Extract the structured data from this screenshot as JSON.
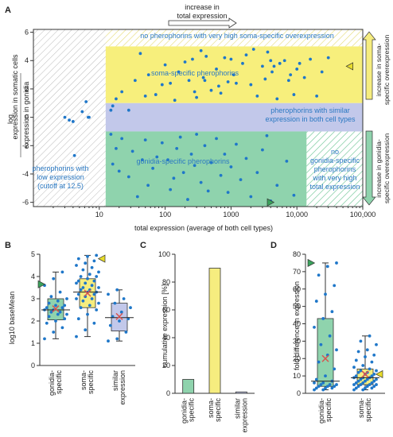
{
  "panels": {
    "a": {
      "letter": "A",
      "top_label_1": "increase in",
      "top_label_2": "total expression",
      "zones": {
        "no_very_high": "no pherophorins with very high soma-specific overexpression",
        "soma": "soma-specific pherophorins",
        "similar_1": "pherophorins with similar",
        "similar_2": "expression in both cell types",
        "gonidia": "gonidia-specific pherophorins",
        "low_1": "pherophorins with",
        "low_2": "low expression",
        "low_3": "(cutoff at 12.5)",
        "no_gon_1": "no",
        "no_gon_2": "gonidia-specific",
        "no_gon_3": "pherophorins",
        "no_gon_4": "with very high",
        "no_gon_5": "total expression"
      },
      "side_soma_1": "increase in soma-",
      "side_soma_2": "specific overexpression",
      "side_gon_1": "increase in gonidia-",
      "side_gon_2": "specific overexpression"
    },
    "b": {
      "letter": "B"
    },
    "c": {
      "letter": "C"
    },
    "d": {
      "letter": "D"
    }
  },
  "colors": {
    "point": "#1f77c9",
    "soma_zone": "#f7ef7c",
    "gonidia_zone": "#8fd3ad",
    "similar_zone": "#c2c8ea",
    "box_gonidia": "#8fd3ad",
    "box_soma": "#f6ed7f",
    "box_similar": "#c2c8ea",
    "mean_marker": "#d9534f",
    "marker_green": "#3aa35c",
    "marker_yellow": "#e8dc2a"
  },
  "chart_data": [
    {
      "type": "scatter",
      "xlabel": "total expression (average of both cell types)",
      "ylabel_prefix": "log",
      "ylabel_num": "expression in somatic cells",
      "ylabel_den": "expression in gonidia",
      "x_scale": "log",
      "xlim": [
        1,
        100000
      ],
      "ylim": [
        -6.3,
        6.2
      ],
      "x_ticks": [
        10,
        100,
        1000,
        10000,
        100000
      ],
      "x_tick_labels": [
        "10",
        "100",
        "1000",
        "10,000",
        "100,000"
      ],
      "y_ticks": [
        -6,
        -4,
        -2,
        0,
        2,
        4,
        6
      ],
      "y_tick_labels": [
        "-6",
        "-4",
        "-2",
        "0",
        "2",
        "4",
        "6"
      ],
      "regions": {
        "low_cutoff": 12.5,
        "soma_band": [
          1,
          5
        ],
        "similar_band": [
          -1,
          1
        ],
        "gonidia_band": [
          -6.3,
          -1
        ],
        "gonidia_max_total": 14000
      },
      "points": [
        [
          3.0,
          0.0
        ],
        [
          3.5,
          -0.2
        ],
        [
          4.0,
          -0.3
        ],
        [
          5.5,
          0.4
        ],
        [
          6.3,
          1.1
        ],
        [
          6.8,
          0.0
        ],
        [
          7.0,
          0.0
        ],
        [
          4.2,
          -2.7
        ],
        [
          15,
          0.5
        ],
        [
          16,
          0.8
        ],
        [
          18,
          1.3
        ],
        [
          22,
          1.8
        ],
        [
          28,
          0.5
        ],
        [
          35,
          2.6
        ],
        [
          42,
          4.5
        ],
        [
          50,
          1.5
        ],
        [
          56,
          3.0
        ],
        [
          72,
          1.6
        ],
        [
          90,
          2.3
        ],
        [
          100,
          3.7
        ],
        [
          120,
          2.4
        ],
        [
          140,
          1.2
        ],
        [
          160,
          3.2
        ],
        [
          200,
          3.9
        ],
        [
          230,
          2.6
        ],
        [
          260,
          4.1
        ],
        [
          280,
          1.8
        ],
        [
          300,
          1.4
        ],
        [
          350,
          4.7
        ],
        [
          380,
          2.8
        ],
        [
          400,
          2.6
        ],
        [
          420,
          4.3
        ],
        [
          500,
          1.9
        ],
        [
          600,
          3.4
        ],
        [
          650,
          2.2
        ],
        [
          700,
          1.7
        ],
        [
          800,
          4.2
        ],
        [
          900,
          2.5
        ],
        [
          1000,
          4.1
        ],
        [
          1100,
          3.0
        ],
        [
          1200,
          2.4
        ],
        [
          1500,
          3.8
        ],
        [
          1700,
          4.4
        ],
        [
          2000,
          2.3
        ],
        [
          2200,
          4.8
        ],
        [
          2500,
          1.5
        ],
        [
          3000,
          3.6
        ],
        [
          3300,
          2.7
        ],
        [
          3600,
          4.6
        ],
        [
          4000,
          4.0
        ],
        [
          4200,
          3.2
        ],
        [
          4500,
          3.6
        ],
        [
          5000,
          1.3
        ],
        [
          5500,
          3.8
        ],
        [
          6500,
          4.0
        ],
        [
          7500,
          2.6
        ],
        [
          8000,
          3.0
        ],
        [
          9000,
          1.6
        ],
        [
          10000,
          3.4
        ],
        [
          11000,
          3.8
        ],
        [
          13000,
          2.8
        ],
        [
          16000,
          4.1
        ],
        [
          20000,
          1.5
        ],
        [
          24000,
          3.2
        ],
        [
          30000,
          4.2
        ],
        [
          15,
          -1.2
        ],
        [
          16,
          -3.3
        ],
        [
          18,
          -2.2
        ],
        [
          20,
          -3.8
        ],
        [
          22,
          -1.5
        ],
        [
          28,
          -4.2
        ],
        [
          32,
          -2.4
        ],
        [
          38,
          -5.6
        ],
        [
          45,
          -3.0
        ],
        [
          50,
          -1.6
        ],
        [
          55,
          -4.8
        ],
        [
          65,
          -3.6
        ],
        [
          75,
          -2.8
        ],
        [
          90,
          -1.8
        ],
        [
          110,
          -3.0
        ],
        [
          120,
          -5.1
        ],
        [
          135,
          -4.3
        ],
        [
          150,
          -2.2
        ],
        [
          170,
          -1.4
        ],
        [
          190,
          -3.9
        ],
        [
          220,
          -5.8
        ],
        [
          250,
          -2.6
        ],
        [
          280,
          -3.4
        ],
        [
          300,
          -1.2
        ],
        [
          350,
          -4.6
        ],
        [
          400,
          -2.0
        ],
        [
          450,
          -5.2
        ],
        [
          500,
          -3.2
        ],
        [
          600,
          -1.5
        ],
        [
          700,
          -4.1
        ],
        [
          800,
          -2.6
        ],
        [
          900,
          -5.3
        ],
        [
          1000,
          -3.5
        ],
        [
          1200,
          -1.9
        ],
        [
          1400,
          -4.4
        ],
        [
          1700,
          -2.9
        ],
        [
          2000,
          -5.6
        ],
        [
          2500,
          -3.9
        ],
        [
          3000,
          -2.3
        ],
        [
          3500,
          -1.3
        ],
        [
          4000,
          -5.9
        ],
        [
          5000,
          -4.8
        ],
        [
          7000,
          -3.1
        ],
        [
          9000,
          -5.5
        ]
      ],
      "markers": [
        {
          "x": 4200,
          "y": -6.0,
          "color": "#3aa35c",
          "direction": "right"
        },
        {
          "x": 60000,
          "y": 3.6,
          "color": "#e8dc2a",
          "direction": "left"
        }
      ]
    },
    {
      "type": "box",
      "ylabel": "log10 baseMean",
      "ylim": [
        0,
        5
      ],
      "y_ticks": [
        0,
        1,
        2,
        3,
        4,
        5
      ],
      "categories": [
        "gonidia-specific",
        "soma-specific",
        "similar expression"
      ],
      "boxes": [
        {
          "name": "gonidia-specific",
          "min": 1.2,
          "q1": 2.05,
          "median": 2.5,
          "q3": 3.0,
          "max": 4.2,
          "mean": 2.55
        },
        {
          "name": "soma-specific",
          "min": 1.3,
          "q1": 2.6,
          "median": 3.3,
          "q3": 3.9,
          "max": 4.95,
          "mean": 3.25
        },
        {
          "name": "similar expression",
          "min": 1.1,
          "q1": 1.55,
          "median": 2.15,
          "q3": 2.8,
          "max": 3.4,
          "mean": 2.2
        }
      ],
      "points": [
        [
          1.2,
          1.5,
          1.7,
          1.9,
          2.0,
          2.1,
          2.2,
          2.3,
          2.3,
          2.4,
          2.4,
          2.5,
          2.5,
          2.6,
          2.6,
          2.7,
          2.7,
          2.8,
          2.9,
          3.0,
          3.1,
          3.3,
          3.6,
          3.9,
          4.2
        ],
        [
          1.3,
          1.6,
          1.9,
          2.1,
          2.3,
          2.5,
          2.6,
          2.7,
          2.8,
          2.9,
          3.0,
          3.0,
          3.1,
          3.2,
          3.2,
          3.3,
          3.3,
          3.4,
          3.4,
          3.5,
          3.5,
          3.6,
          3.7,
          3.7,
          3.8,
          3.8,
          3.9,
          4.0,
          4.0,
          4.1,
          4.2,
          4.3,
          4.4,
          4.5,
          4.6,
          4.7,
          4.8,
          4.9,
          4.95
        ],
        [
          1.1,
          1.2,
          1.5,
          1.8,
          2.0,
          2.1,
          2.2,
          2.4,
          2.6,
          2.8,
          3.0,
          3.2,
          3.4
        ]
      ],
      "markers": [
        {
          "category": "gonidia-specific",
          "y": 3.65,
          "color": "#3aa35c",
          "direction": "right"
        },
        {
          "category": "soma-specific",
          "y": 4.8,
          "color": "#e8dc2a",
          "direction": "left"
        }
      ]
    },
    {
      "type": "bar",
      "ylabel": "cumulative expression [%]",
      "ylim": [
        0,
        100
      ],
      "y_ticks": [
        0,
        20,
        40,
        60,
        80,
        100
      ],
      "categories": [
        "gonidia-specific",
        "soma-specific",
        "similar expression"
      ],
      "values": [
        10,
        90,
        1
      ],
      "colors": [
        "#8fd3ad",
        "#f6ed7f",
        "#c2c8ea"
      ]
    },
    {
      "type": "box",
      "ylabel": "fold difference in expression",
      "ylim": [
        0,
        80
      ],
      "y_ticks": [
        0,
        10,
        20,
        30,
        40,
        50,
        60,
        70,
        80
      ],
      "categories": [
        "gonidia-specific",
        "soma-specific"
      ],
      "boxes": [
        {
          "name": "gonidia-specific",
          "min": 2,
          "q1": 4,
          "median": 7,
          "q3": 43,
          "max": 75,
          "mean": 20
        },
        {
          "name": "soma-specific",
          "min": 2,
          "q1": 5,
          "median": 9,
          "q3": 14,
          "max": 33,
          "mean": 11
        }
      ],
      "points": [
        [
          2,
          2,
          3,
          3,
          3,
          4,
          4,
          4,
          5,
          5,
          5,
          6,
          6,
          7,
          8,
          10,
          14,
          18,
          22,
          25,
          28,
          33,
          38,
          43,
          47,
          53,
          57,
          62,
          68,
          73,
          75
        ],
        [
          2,
          2,
          3,
          3,
          3,
          4,
          4,
          4,
          5,
          5,
          5,
          5,
          6,
          6,
          6,
          7,
          7,
          7,
          8,
          8,
          8,
          9,
          9,
          9,
          10,
          10,
          11,
          11,
          12,
          12,
          13,
          13,
          14,
          15,
          16,
          18,
          19,
          21,
          22,
          24,
          25,
          28,
          30,
          33
        ]
      ],
      "markers": [
        {
          "category": "gonidia-specific",
          "y": 75,
          "color": "#3aa35c",
          "direction": "right"
        },
        {
          "category": "soma-specific",
          "y": 11,
          "color": "#e8dc2a",
          "direction": "left"
        }
      ]
    }
  ]
}
